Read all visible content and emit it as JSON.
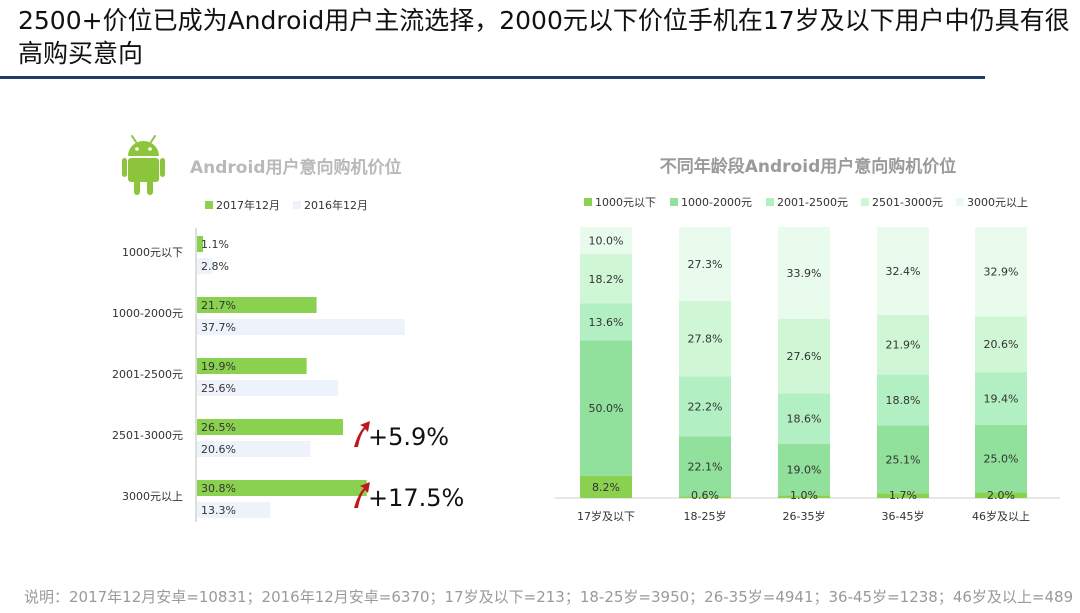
{
  "page": {
    "title": "2500+价位已成为Android用户主流选择，2000元以下价位手机在17岁及以下用户中仍具有很高购买意向",
    "footnote": "说明：2017年12月安卓=10831；2016年12月安卓=6370；17岁及以下=213；18-25岁=3950；26-35岁=4941；36-45岁=1238；46岁及以上=489",
    "icon": "android-robot-icon"
  },
  "colors": {
    "title_rule": "#1f3d6b",
    "green_dark": "#8bd150",
    "green_mid": "#91e09c",
    "green_light": "#b2f0c4",
    "green_pale": "#cff7d6",
    "green_faint": "#e9fbec",
    "blue_pale": "#eef3fb",
    "arrow_red": "#c0161c",
    "android_green": "#8cc43c"
  },
  "chart_data": [
    {
      "type": "bar",
      "orientation": "horizontal",
      "title": "Android用户意向购机价位",
      "categories": [
        "1000元以下",
        "1000-2000元",
        "2001-2500元",
        "2501-3000元",
        "3000元以上"
      ],
      "series": [
        {
          "name": "2017年12月",
          "values": [
            1.1,
            21.7,
            19.9,
            26.5,
            30.8
          ],
          "labels": [
            "1.1%",
            "21.7%",
            "19.9%",
            "26.5%",
            "30.8%"
          ]
        },
        {
          "name": "2016年12月",
          "values": [
            2.8,
            37.7,
            25.6,
            20.6,
            13.3
          ],
          "labels": [
            "2.8%",
            "37.7%",
            "25.6%",
            "20.6%",
            "13.3%"
          ]
        }
      ],
      "annotations": [
        {
          "category": "2501-3000元",
          "text": "+5.9%",
          "symbol": "up-arrow"
        },
        {
          "category": "3000元以上",
          "text": "+17.5%",
          "symbol": "up-arrow"
        }
      ],
      "legend": "top",
      "grid": false
    },
    {
      "type": "bar",
      "stacked": true,
      "percent": true,
      "title": "不同年龄段Android用户意向购机价位",
      "categories": [
        "17岁及以下",
        "18-25岁",
        "26-35岁",
        "36-45岁",
        "46岁及以上"
      ],
      "series": [
        {
          "name": "1000元以下",
          "values": [
            8.2,
            0.6,
            1.0,
            1.7,
            2.0
          ],
          "labels": [
            "8.2%",
            "0.6%",
            "1.0%",
            "1.7%",
            "2.0%"
          ]
        },
        {
          "name": "1000-2000元",
          "values": [
            50.0,
            22.1,
            19.0,
            25.1,
            25.0
          ],
          "labels": [
            "50.0%",
            "22.1%",
            "19.0%",
            "25.1%",
            "25.0%"
          ]
        },
        {
          "name": "2001-2500元",
          "values": [
            13.6,
            22.2,
            18.6,
            18.8,
            19.4
          ],
          "labels": [
            "13.6%",
            "22.2%",
            "18.6%",
            "18.8%",
            "19.4%"
          ]
        },
        {
          "name": "2501-3000元",
          "values": [
            18.2,
            27.8,
            27.6,
            21.9,
            20.6
          ],
          "labels": [
            "18.2%",
            "27.8%",
            "27.6%",
            "21.9%",
            "20.6%"
          ]
        },
        {
          "name": "3000元以上",
          "values": [
            10.0,
            27.3,
            33.9,
            32.4,
            32.9
          ],
          "labels": [
            "10.0%",
            "27.3%",
            "33.9%",
            "32.4%",
            "32.9%"
          ]
        }
      ],
      "legend": "top",
      "grid": false
    }
  ]
}
